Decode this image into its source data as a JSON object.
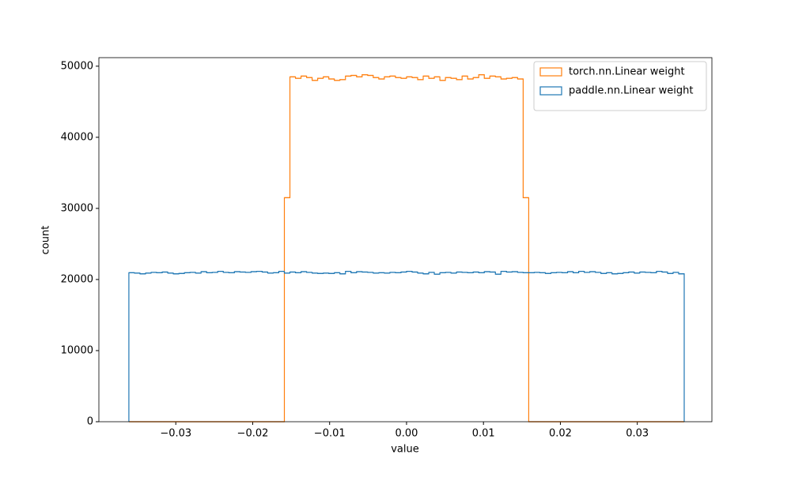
{
  "chart_data": {
    "type": "histogram",
    "xlabel": "value",
    "ylabel": "count",
    "bins": [
      -0.0361,
      -0.035378,
      -0.034656,
      -0.033934,
      -0.033212,
      -0.03249,
      -0.031768,
      -0.031046,
      -0.030324,
      -0.029602,
      -0.02888,
      -0.028158,
      -0.027436,
      -0.026714,
      -0.025992,
      -0.02527,
      -0.024548,
      -0.023826,
      -0.023104,
      -0.022382,
      -0.02166,
      -0.020938,
      -0.020216,
      -0.019494,
      -0.018772,
      -0.01805,
      -0.017328,
      -0.016606,
      -0.015884,
      -0.015162,
      -0.01444,
      -0.013718,
      -0.012996,
      -0.012274,
      -0.011552,
      -0.01083,
      -0.010108,
      -0.009386,
      -0.008664,
      -0.007942,
      -0.00722,
      -0.006498,
      -0.005776,
      -0.005054,
      -0.004332,
      -0.00361,
      -0.002888,
      -0.002166,
      -0.001444,
      -0.000722,
      0,
      0.000722,
      0.001444,
      0.002166,
      0.002888,
      0.00361,
      0.004332,
      0.005054,
      0.005776,
      0.006498,
      0.00722,
      0.007942,
      0.008664,
      0.009386,
      0.010108,
      0.01083,
      0.011552,
      0.012274,
      0.012996,
      0.013718,
      0.01444,
      0.015162,
      0.015884,
      0.016606,
      0.017328,
      0.01805,
      0.018772,
      0.019494,
      0.020216,
      0.020938,
      0.02166,
      0.022382,
      0.023104,
      0.023826,
      0.024548,
      0.02527,
      0.025992,
      0.026714,
      0.027436,
      0.028158,
      0.02888,
      0.029602,
      0.030324,
      0.031046,
      0.031768,
      0.03249,
      0.033212,
      0.033934,
      0.034656,
      0.035378,
      0.0361
    ],
    "series": [
      {
        "name": "torch.nn.Linear weight",
        "color": "#ff7f0e",
        "values": [
          0,
          0,
          0,
          0,
          0,
          0,
          0,
          0,
          0,
          0,
          0,
          0,
          0,
          0,
          0,
          0,
          0,
          0,
          0,
          0,
          0,
          0,
          0,
          0,
          0,
          0,
          0,
          0,
          31500,
          48500,
          48300,
          48600,
          48400,
          48000,
          48300,
          48500,
          48200,
          48000,
          48100,
          48600,
          48700,
          48500,
          48800,
          48700,
          48400,
          48200,
          48500,
          48600,
          48400,
          48300,
          48500,
          48400,
          48100,
          48600,
          48300,
          48500,
          48000,
          48400,
          48300,
          48100,
          48600,
          48200,
          48400,
          48800,
          48300,
          48600,
          48500,
          48200,
          48300,
          48400,
          48200,
          31500,
          0,
          0,
          0,
          0,
          0,
          0,
          0,
          0,
          0,
          0,
          0,
          0,
          0,
          0,
          0,
          0,
          0,
          0,
          0,
          0,
          0,
          0,
          0,
          0,
          0,
          0,
          0,
          0
        ]
      },
      {
        "name": "paddle.nn.Linear weight",
        "color": "#1f77b4",
        "values": [
          20950,
          20900,
          20800,
          20900,
          21000,
          20950,
          21050,
          20900,
          20800,
          20850,
          20950,
          21000,
          20900,
          21100,
          20950,
          21000,
          21150,
          21000,
          20950,
          21100,
          21050,
          21000,
          21100,
          21150,
          21050,
          20900,
          20950,
          21150,
          20900,
          21050,
          20950,
          21100,
          21000,
          20900,
          20850,
          20900,
          20850,
          20950,
          20800,
          21150,
          20950,
          21100,
          21050,
          21000,
          20900,
          20950,
          20900,
          21000,
          20950,
          21050,
          21150,
          21050,
          20900,
          20800,
          21000,
          20750,
          20950,
          21000,
          20900,
          21050,
          21000,
          20950,
          21050,
          20950,
          21100,
          21050,
          20750,
          21150,
          21050,
          21100,
          21000,
          20950,
          20950,
          21000,
          20950,
          20850,
          20950,
          21000,
          20950,
          21100,
          20950,
          21150,
          21000,
          21100,
          21000,
          20850,
          20950,
          20800,
          20850,
          20950,
          21050,
          20900,
          21050,
          21000,
          20950,
          21150,
          21050,
          20850,
          21000,
          20800
        ]
      }
    ],
    "xlim": [
      -0.04,
      0.0397
    ],
    "ylim": [
      0,
      51200
    ],
    "xticks": [
      {
        "value": -0.03,
        "label": "−0.03"
      },
      {
        "value": -0.02,
        "label": "−0.02"
      },
      {
        "value": -0.01,
        "label": "−0.01"
      },
      {
        "value": 0,
        "label": "0.00"
      },
      0.01,
      0.02,
      0.03
    ],
    "yticks": [
      0,
      10000,
      20000,
      30000,
      40000,
      50000
    ],
    "grid": false,
    "legend": "upper right"
  }
}
